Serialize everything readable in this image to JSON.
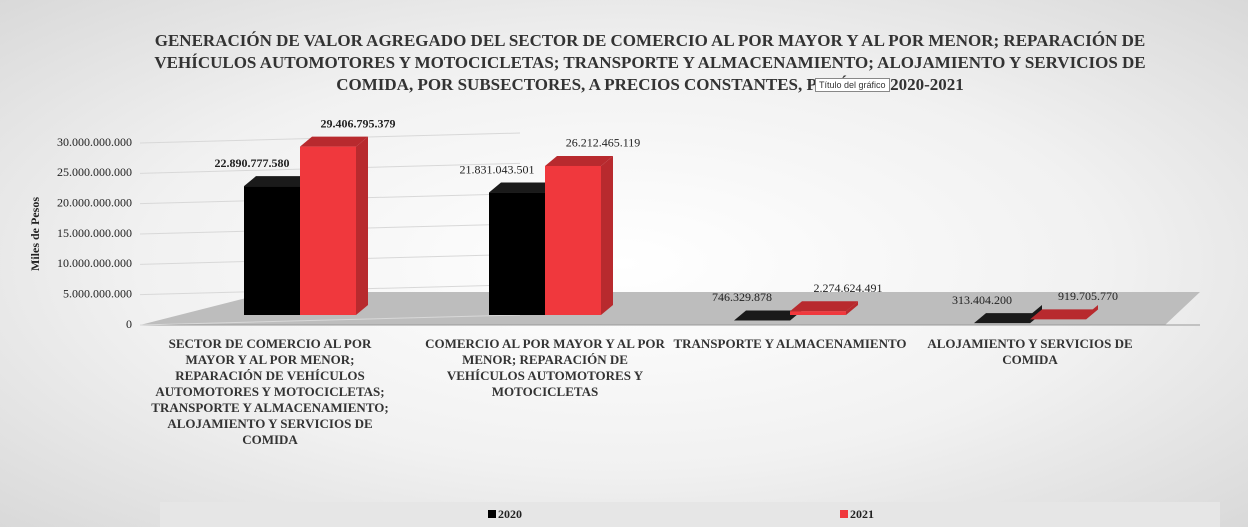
{
  "chart_data": {
    "type": "bar3d",
    "title": "GENERACIÓN DE VALOR AGREGADO DEL SECTOR DE COMERCIO AL POR MAYOR Y AL POR MENOR; REPARACIÓN DE VEHÍCULOS AUTOMOTORES Y MOTOCICLETAS; TRANSPORTE Y ALMACENAMIENTO; ALOJAMIENTO Y SERVICIOS DE COMIDA, POR SUBSECTORES, A PRECIOS CONSTANTES, PERÍODO 2020-2021",
    "tooltip": "Título del gráfico",
    "y_label": "Miles de Pesos",
    "categories": [
      "SECTOR DE COMERCIO AL POR MAYOR Y AL POR MENOR; REPARACIÓN DE VEHÍCULOS AUTOMOTORES Y MOTOCICLETAS; TRANSPORTE Y ALMACENAMIENTO; ALOJAMIENTO Y SERVICIOS DE COMIDA",
      "COMERCIO AL POR MAYOR Y AL POR MENOR; REPARACIÓN DE VEHÍCULOS AUTOMOTORES Y MOTOCICLETAS",
      "TRANSPORTE Y ALMACENAMIENTO",
      "ALOJAMIENTO Y SERVICIOS DE COMIDA"
    ],
    "series": [
      {
        "name": "2020",
        "color": "#000000",
        "side": "#1a1a1a",
        "values": [
          22890777580,
          21831043501,
          746329878,
          313404200
        ],
        "value_labels": [
          "22.890.777.580",
          "21.831.043.501",
          "746.329.878",
          "313.404.200"
        ]
      },
      {
        "name": "2021",
        "color": "#f0383d",
        "side": "#b82a2e",
        "values": [
          29406795379,
          26212465119,
          2274624491,
          919705770
        ],
        "value_labels": [
          "29.406.795.379",
          "26.212.465.119",
          "2.274.624.491",
          "919.705.770"
        ]
      }
    ],
    "ylim": [
      0,
      30000000000
    ],
    "yticks": [
      0,
      {
        "value": 5000000000,
        "label": "5.000.000.000"
      },
      {
        "value": 10000000000,
        "label": "10.000.000.000"
      },
      {
        "value": 15000000000,
        "label": "15.000.000.000"
      },
      {
        "value": 20000000000,
        "label": "20.000.000.000"
      },
      {
        "value": 25000000000,
        "label": "25.000.000.000"
      },
      {
        "value": 30000000000,
        "label": "30.000.000.000"
      }
    ],
    "legend": "bottom"
  }
}
